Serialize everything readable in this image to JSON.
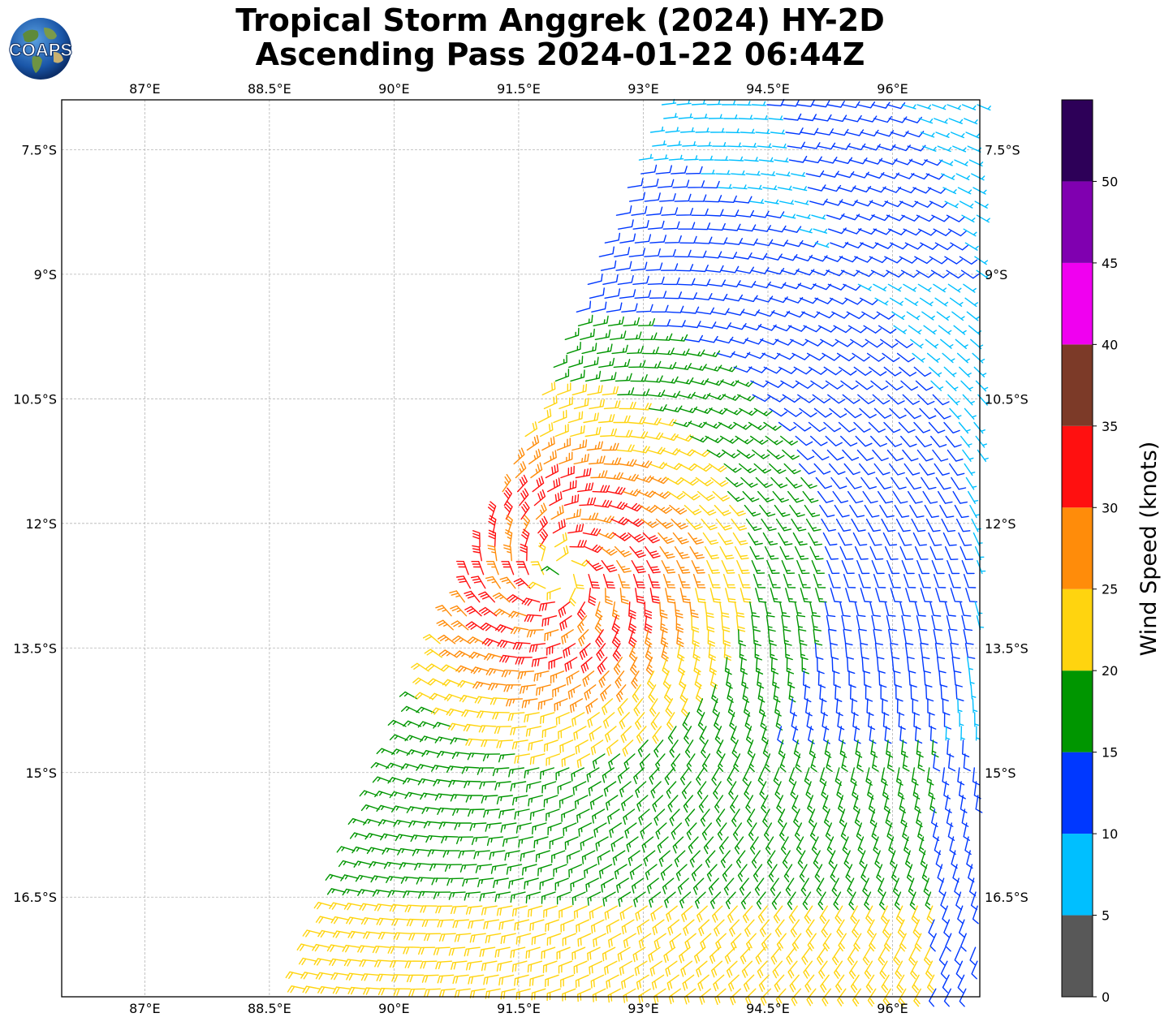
{
  "title": {
    "line1": "Tropical Storm Anggrek (2024) HY-2D",
    "line2": "Ascending Pass 2024-01-22 06:44Z"
  },
  "logo": {
    "text": "COAPS",
    "icon": "globe-logo-icon"
  },
  "map": {
    "lon_ticks": [
      "87°E",
      "88.5°E",
      "90°E",
      "91.5°E",
      "93°E",
      "94.5°E",
      "96°E"
    ],
    "lon_values": [
      87,
      88.5,
      90,
      91.5,
      93,
      94.5,
      96
    ],
    "lat_ticks": [
      "7.5°S",
      "9°S",
      "10.5°S",
      "12°S",
      "13.5°S",
      "15°S",
      "16.5°S"
    ],
    "lat_values": [
      -7.5,
      -9,
      -10.5,
      -12,
      -13.5,
      -15,
      -16.5
    ],
    "lon_range": [
      86,
      97.05
    ],
    "lat_range": [
      -6.9,
      -17.7
    ],
    "gridlines": true,
    "storm_center": {
      "lon": 92.0,
      "lat": -12.6
    },
    "swath_left_edge": [
      [
        93.25,
        -6.9
      ],
      [
        88.8,
        -17.7
      ]
    ]
  },
  "colorbar": {
    "label": "Wind Speed (knots)",
    "ticks": [
      "0",
      "5",
      "10",
      "15",
      "20",
      "25",
      "30",
      "35",
      "40",
      "45",
      "50"
    ],
    "bins": [
      {
        "min": 0,
        "max": 5,
        "color": "#585858"
      },
      {
        "min": 5,
        "max": 10,
        "color": "#00bfff"
      },
      {
        "min": 10,
        "max": 15,
        "color": "#0038ff"
      },
      {
        "min": 15,
        "max": 20,
        "color": "#009600"
      },
      {
        "min": 20,
        "max": 25,
        "color": "#ffd40f"
      },
      {
        "min": 25,
        "max": 30,
        "color": "#ff8c0a"
      },
      {
        "min": 30,
        "max": 35,
        "color": "#ff1010"
      },
      {
        "min": 35,
        "max": 40,
        "color": "#7c3a28"
      },
      {
        "min": 40,
        "max": 45,
        "color": "#f000f0"
      },
      {
        "min": 45,
        "max": 50,
        "color": "#8000b0"
      },
      {
        "min": 50,
        "max": 55,
        "color": "#2d0058"
      }
    ]
  }
}
